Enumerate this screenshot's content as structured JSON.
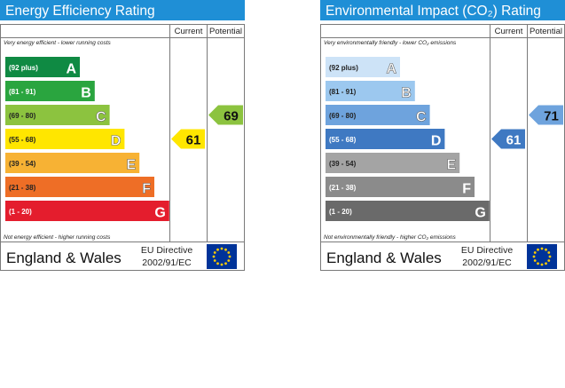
{
  "chart_data": [
    {
      "type": "bar",
      "title": "Energy Efficiency Rating",
      "column_headers": [
        "Current",
        "Potential"
      ],
      "top_note": "Very energy efficient - lower running costs",
      "bottom_note": "Not energy efficient - higher running costs",
      "region": "England & Wales",
      "directive_line1": "EU Directive",
      "directive_line2": "2002/91/EC",
      "bands": [
        {
          "range": "(92 plus)",
          "letter": "A",
          "color": "#0f8a43"
        },
        {
          "range": "(81 - 91)",
          "letter": "B",
          "color": "#2aa53f"
        },
        {
          "range": "(69 - 80)",
          "letter": "C",
          "color": "#8cc33f"
        },
        {
          "range": "(55 - 68)",
          "letter": "D",
          "color": "#ffe600"
        },
        {
          "range": "(39 - 54)",
          "letter": "E",
          "color": "#f7b234"
        },
        {
          "range": "(21 - 38)",
          "letter": "F",
          "color": "#ee6e26"
        },
        {
          "range": "(1 - 20)",
          "letter": "G",
          "color": "#e41d2d"
        }
      ],
      "current": {
        "value": 61,
        "band": "D",
        "color": "#ffe600"
      },
      "potential": {
        "value": 69,
        "band": "C",
        "color": "#8cc33f"
      }
    },
    {
      "type": "bar",
      "title": "Environmental Impact (CO₂) Rating",
      "column_headers": [
        "Current",
        "Potential"
      ],
      "top_note": "Very environmentally friendly - lower CO₂ emissions",
      "bottom_note": "Not environmentally friendly - higher CO₂ emissions",
      "region": "England & Wales",
      "directive_line1": "EU Directive",
      "directive_line2": "2002/91/EC",
      "bands": [
        {
          "range": "(92 plus)",
          "letter": "A",
          "color": "#cde3f7"
        },
        {
          "range": "(81 - 91)",
          "letter": "B",
          "color": "#9cc8ef"
        },
        {
          "range": "(69 - 80)",
          "letter": "C",
          "color": "#6ea3dd"
        },
        {
          "range": "(55 - 68)",
          "letter": "D",
          "color": "#3f79c2"
        },
        {
          "range": "(39 - 54)",
          "letter": "E",
          "color": "#a4a4a4"
        },
        {
          "range": "(21 - 38)",
          "letter": "F",
          "color": "#8b8b8b"
        },
        {
          "range": "(1 - 20)",
          "letter": "G",
          "color": "#6a6a6a"
        }
      ],
      "current": {
        "value": 61,
        "band": "D",
        "color": "#3f79c2"
      },
      "potential": {
        "value": 71,
        "band": "C",
        "color": "#6ea3dd"
      }
    }
  ],
  "colors": {
    "header_blue": "#1f8fd6",
    "eu_flag_blue": "#003399",
    "eu_star_yellow": "#ffcc00",
    "border": "#7a7a7a"
  }
}
